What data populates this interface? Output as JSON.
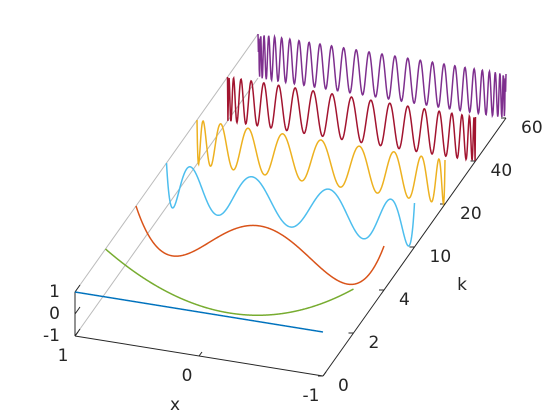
{
  "chart_data": {
    "type": "chebyshev3d",
    "xlabel": "x",
    "ylabel": "k",
    "xlim": [
      -1,
      1
    ],
    "xticks": [
      -1,
      0,
      1
    ],
    "zlim": [
      -1,
      1
    ],
    "zticks": [
      -1,
      0,
      1
    ],
    "yticks": [
      0,
      2,
      4,
      10,
      20,
      40,
      60
    ],
    "series": [
      {
        "k": 0,
        "color": "#0072BD"
      },
      {
        "k": 2,
        "color": "#77AC30"
      },
      {
        "k": 4,
        "color": "#D95319"
      },
      {
        "k": 10,
        "color": "#4DBEEE"
      },
      {
        "k": 20,
        "color": "#EDB120"
      },
      {
        "k": 40,
        "color": "#A2142F"
      },
      {
        "k": 60,
        "color": "#7E2F8E"
      }
    ]
  }
}
